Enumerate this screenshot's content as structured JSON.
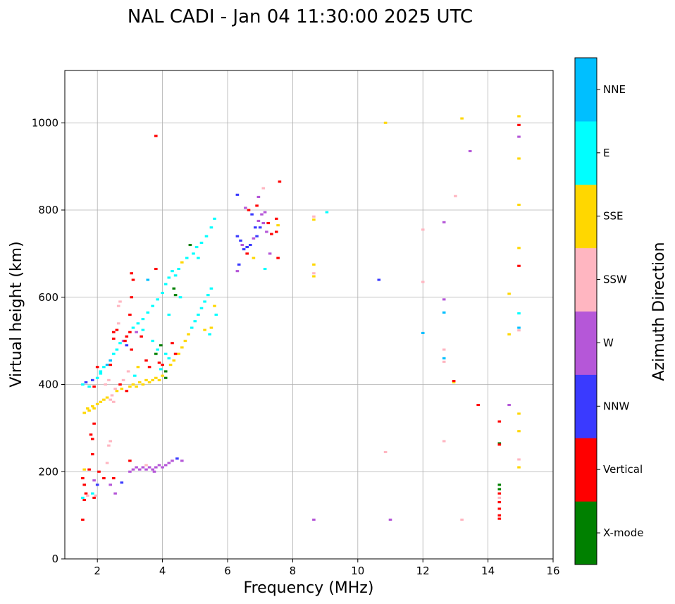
{
  "chart_data": {
    "type": "scatter",
    "title": "NAL CADI - Jan 04 11:30:00 2025 UTC",
    "xlabel": "Frequency (MHz)",
    "ylabel": "Virtual height (km)",
    "xlim": [
      1,
      16
    ],
    "ylim": [
      0,
      1120
    ],
    "xticks": [
      "2",
      "4",
      "6",
      "8",
      "10",
      "12",
      "14",
      "16"
    ],
    "yticks": [
      "0",
      "200",
      "400",
      "600",
      "800",
      "1000"
    ],
    "grid": true,
    "colorbar": {
      "label": "Azimuth Direction",
      "categories": [
        "X-mode",
        "Vertical",
        "NNW",
        "W",
        "SSW",
        "SSE",
        "E",
        "NNE"
      ],
      "colors": [
        "#008000",
        "#ff0000",
        "#3a3aff",
        "#b557d8",
        "#ffb6c1",
        "#ffd700",
        "#00ffff",
        "#00bfff"
      ]
    },
    "points": [
      [
        1.55,
        90,
        "Vertical"
      ],
      [
        1.6,
        135,
        "Vertical"
      ],
      [
        1.55,
        140,
        "E"
      ],
      [
        1.65,
        150,
        "Vertical"
      ],
      [
        1.7,
        145,
        "SSW"
      ],
      [
        1.6,
        170,
        "Vertical"
      ],
      [
        1.55,
        185,
        "Vertical"
      ],
      [
        1.6,
        205,
        "SSE"
      ],
      [
        1.75,
        205,
        "Vertical"
      ],
      [
        1.9,
        180,
        "W"
      ],
      [
        2.0,
        170,
        "NNW"
      ],
      [
        2.05,
        200,
        "Vertical"
      ],
      [
        1.95,
        145,
        "SSW"
      ],
      [
        2.2,
        185,
        "Vertical"
      ],
      [
        2.4,
        170,
        "W"
      ],
      [
        2.5,
        185,
        "Vertical"
      ],
      [
        2.55,
        150,
        "W"
      ],
      [
        2.75,
        175,
        "NNW"
      ],
      [
        1.9,
        140,
        "Vertical"
      ],
      [
        1.85,
        150,
        "E"
      ],
      [
        1.8,
        285,
        "Vertical"
      ],
      [
        1.85,
        275,
        "Vertical"
      ],
      [
        1.9,
        310,
        "Vertical"
      ],
      [
        1.85,
        240,
        "Vertical"
      ],
      [
        2.35,
        260,
        "SSW"
      ],
      [
        2.4,
        270,
        "SSW"
      ],
      [
        2.3,
        220,
        "SSW"
      ],
      [
        3.0,
        200,
        "W"
      ],
      [
        3.1,
        205,
        "W"
      ],
      [
        3.2,
        210,
        "W"
      ],
      [
        3.3,
        205,
        "W"
      ],
      [
        3.4,
        210,
        "W"
      ],
      [
        3.5,
        205,
        "W"
      ],
      [
        3.6,
        210,
        "W"
      ],
      [
        3.7,
        205,
        "W"
      ],
      [
        3.8,
        210,
        "W"
      ],
      [
        3.9,
        215,
        "W"
      ],
      [
        4.0,
        210,
        "W"
      ],
      [
        4.1,
        215,
        "W"
      ],
      [
        4.2,
        220,
        "W"
      ],
      [
        4.3,
        225,
        "W"
      ],
      [
        4.45,
        230,
        "NNW"
      ],
      [
        4.6,
        225,
        "W"
      ],
      [
        3.0,
        225,
        "Vertical"
      ],
      [
        3.5,
        215,
        "SSW"
      ],
      [
        3.75,
        200,
        "W"
      ],
      [
        1.6,
        335,
        "SSE"
      ],
      [
        1.7,
        345,
        "SSE"
      ],
      [
        1.75,
        340,
        "SSE"
      ],
      [
        1.85,
        350,
        "SSE"
      ],
      [
        1.9,
        345,
        "SSE"
      ],
      [
        2.0,
        355,
        "SSE"
      ],
      [
        2.1,
        360,
        "SSE"
      ],
      [
        2.2,
        365,
        "SSE"
      ],
      [
        2.3,
        370,
        "SSE"
      ],
      [
        2.4,
        365,
        "SSW"
      ],
      [
        2.45,
        375,
        "SSW"
      ],
      [
        2.5,
        360,
        "SSW"
      ],
      [
        2.6,
        385,
        "SSE"
      ],
      [
        2.75,
        390,
        "SSE"
      ],
      [
        2.9,
        385,
        "Vertical"
      ],
      [
        3.0,
        395,
        "SSE"
      ],
      [
        3.1,
        400,
        "SSE"
      ],
      [
        3.2,
        395,
        "SSE"
      ],
      [
        3.3,
        405,
        "SSE"
      ],
      [
        3.4,
        400,
        "SSE"
      ],
      [
        3.5,
        410,
        "SSE"
      ],
      [
        3.6,
        405,
        "SSE"
      ],
      [
        3.7,
        410,
        "SSE"
      ],
      [
        3.8,
        415,
        "SSE"
      ],
      [
        3.9,
        410,
        "SSE"
      ],
      [
        4.0,
        420,
        "SSE"
      ],
      [
        4.1,
        430,
        "X-mode"
      ],
      [
        4.1,
        415,
        "X-mode"
      ],
      [
        4.25,
        445,
        "SSE"
      ],
      [
        4.35,
        455,
        "SSE"
      ],
      [
        4.5,
        470,
        "SSE"
      ],
      [
        4.6,
        485,
        "SSE"
      ],
      [
        4.7,
        500,
        "SSE"
      ],
      [
        4.8,
        515,
        "SSE"
      ],
      [
        4.9,
        530,
        "E"
      ],
      [
        5.0,
        545,
        "E"
      ],
      [
        5.1,
        560,
        "E"
      ],
      [
        5.2,
        575,
        "E"
      ],
      [
        5.3,
        590,
        "E"
      ],
      [
        5.4,
        605,
        "E"
      ],
      [
        5.5,
        620,
        "E"
      ],
      [
        5.5,
        530,
        "SSE"
      ],
      [
        5.45,
        515,
        "E"
      ],
      [
        5.3,
        525,
        "SSE"
      ],
      [
        5.6,
        580,
        "SSE"
      ],
      [
        5.65,
        560,
        "E"
      ],
      [
        1.55,
        400,
        "E"
      ],
      [
        1.65,
        405,
        "NNW"
      ],
      [
        1.75,
        395,
        "E"
      ],
      [
        1.85,
        410,
        "NNW"
      ],
      [
        1.9,
        395,
        "Vertical"
      ],
      [
        2.0,
        415,
        "E"
      ],
      [
        2.1,
        425,
        "E"
      ],
      [
        2.2,
        440,
        "E"
      ],
      [
        2.3,
        445,
        "NNE"
      ],
      [
        2.4,
        455,
        "NNE"
      ],
      [
        2.5,
        470,
        "E"
      ],
      [
        2.6,
        480,
        "E"
      ],
      [
        2.7,
        495,
        "E"
      ],
      [
        2.8,
        500,
        "W"
      ],
      [
        2.9,
        510,
        "Vertical"
      ],
      [
        3.0,
        520,
        "Vertical"
      ],
      [
        3.1,
        530,
        "E"
      ],
      [
        3.25,
        540,
        "E"
      ],
      [
        3.4,
        550,
        "E"
      ],
      [
        3.55,
        565,
        "E"
      ],
      [
        3.7,
        580,
        "E"
      ],
      [
        3.85,
        595,
        "E"
      ],
      [
        4.0,
        610,
        "E"
      ],
      [
        4.1,
        630,
        "E"
      ],
      [
        4.2,
        645,
        "E"
      ],
      [
        4.3,
        660,
        "E"
      ],
      [
        4.4,
        650,
        "E"
      ],
      [
        4.5,
        665,
        "E"
      ],
      [
        4.6,
        680,
        "SSE"
      ],
      [
        4.75,
        690,
        "E"
      ],
      [
        4.85,
        720,
        "X-mode"
      ],
      [
        4.95,
        700,
        "E"
      ],
      [
        5.05,
        715,
        "E"
      ],
      [
        5.2,
        725,
        "E"
      ],
      [
        5.35,
        740,
        "E"
      ],
      [
        5.5,
        760,
        "E"
      ],
      [
        5.6,
        780,
        "E"
      ],
      [
        5.1,
        690,
        "E"
      ],
      [
        4.35,
        620,
        "X-mode"
      ],
      [
        4.4,
        605,
        "X-mode"
      ],
      [
        4.55,
        600,
        "E"
      ],
      [
        2.0,
        440,
        "Vertical"
      ],
      [
        2.1,
        430,
        "E"
      ],
      [
        2.4,
        445,
        "Vertical"
      ],
      [
        2.5,
        505,
        "Vertical"
      ],
      [
        2.5,
        520,
        "Vertical"
      ],
      [
        2.6,
        525,
        "Vertical"
      ],
      [
        2.65,
        540,
        "SSW"
      ],
      [
        2.65,
        580,
        "SSW"
      ],
      [
        2.7,
        590,
        "SSW"
      ],
      [
        2.85,
        500,
        "Vertical"
      ],
      [
        2.9,
        490,
        "NNW"
      ],
      [
        3.05,
        480,
        "Vertical"
      ],
      [
        3.0,
        560,
        "Vertical"
      ],
      [
        3.05,
        600,
        "Vertical"
      ],
      [
        3.05,
        655,
        "Vertical"
      ],
      [
        3.1,
        640,
        "Vertical"
      ],
      [
        3.2,
        520,
        "W"
      ],
      [
        3.35,
        510,
        "Vertical"
      ],
      [
        3.4,
        525,
        "E"
      ],
      [
        3.55,
        640,
        "NNE"
      ],
      [
        3.7,
        500,
        "E"
      ],
      [
        3.8,
        665,
        "Vertical"
      ],
      [
        3.85,
        480,
        "E"
      ],
      [
        3.95,
        490,
        "X-mode"
      ],
      [
        4.1,
        470,
        "E"
      ],
      [
        4.2,
        460,
        "E"
      ],
      [
        4.3,
        495,
        "Vertical"
      ],
      [
        4.2,
        560,
        "E"
      ],
      [
        4.4,
        470,
        "Vertical"
      ],
      [
        3.8,
        970,
        "Vertical"
      ],
      [
        3.5,
        455,
        "Vertical"
      ],
      [
        3.8,
        470,
        "X-mode"
      ],
      [
        3.9,
        450,
        "Vertical"
      ],
      [
        4.0,
        445,
        "Vertical"
      ],
      [
        3.95,
        435,
        "E"
      ],
      [
        3.6,
        440,
        "Vertical"
      ],
      [
        3.25,
        440,
        "SSE"
      ],
      [
        3.15,
        420,
        "E"
      ],
      [
        2.95,
        430,
        "SSW"
      ],
      [
        2.8,
        410,
        "SSW"
      ],
      [
        2.7,
        400,
        "Vertical"
      ],
      [
        2.55,
        390,
        "SSW"
      ],
      [
        2.35,
        410,
        "SSW"
      ],
      [
        2.25,
        400,
        "SSW"
      ],
      [
        6.3,
        740,
        "NNW"
      ],
      [
        6.4,
        730,
        "NNW"
      ],
      [
        6.5,
        710,
        "NNW"
      ],
      [
        6.6,
        715,
        "NNW"
      ],
      [
        6.7,
        720,
        "NNW"
      ],
      [
        6.8,
        735,
        "W"
      ],
      [
        6.9,
        740,
        "NNW"
      ],
      [
        7.0,
        760,
        "NNW"
      ],
      [
        7.1,
        770,
        "W"
      ],
      [
        6.85,
        760,
        "NNW"
      ],
      [
        6.95,
        775,
        "W"
      ],
      [
        6.75,
        790,
        "NNW"
      ],
      [
        6.65,
        800,
        "Vertical"
      ],
      [
        6.55,
        805,
        "W"
      ],
      [
        6.9,
        810,
        "Vertical"
      ],
      [
        7.05,
        790,
        "W"
      ],
      [
        6.95,
        830,
        "W"
      ],
      [
        7.15,
        795,
        "W"
      ],
      [
        7.25,
        770,
        "Vertical"
      ],
      [
        7.2,
        750,
        "W"
      ],
      [
        6.3,
        835,
        "NNW"
      ],
      [
        6.45,
        720,
        "W"
      ],
      [
        6.8,
        690,
        "SSE"
      ],
      [
        7.3,
        700,
        "W"
      ],
      [
        7.5,
        750,
        "Vertical"
      ],
      [
        7.55,
        690,
        "Vertical"
      ],
      [
        7.6,
        865,
        "Vertical"
      ],
      [
        7.5,
        780,
        "Vertical"
      ],
      [
        7.55,
        765,
        "SSE"
      ],
      [
        6.3,
        660,
        "W"
      ],
      [
        6.6,
        700,
        "Vertical"
      ],
      [
        6.35,
        675,
        "NNW"
      ],
      [
        7.15,
        665,
        "E"
      ],
      [
        7.35,
        745,
        "Vertical"
      ],
      [
        7.1,
        850,
        "SSW"
      ],
      [
        8.65,
        778,
        "SSE"
      ],
      [
        8.65,
        785,
        "SSW"
      ],
      [
        9.05,
        795,
        "E"
      ],
      [
        8.65,
        675,
        "SSE"
      ],
      [
        8.65,
        648,
        "SSE"
      ],
      [
        8.65,
        655,
        "SSW"
      ],
      [
        8.65,
        90,
        "W"
      ],
      [
        10.65,
        640,
        "NNW"
      ],
      [
        11.0,
        90,
        "W"
      ],
      [
        10.85,
        245,
        "SSW"
      ],
      [
        10.85,
        1000,
        "SSE"
      ],
      [
        12.0,
        755,
        "SSW"
      ],
      [
        12.0,
        635,
        "SSW"
      ],
      [
        12.0,
        518,
        "NNE"
      ],
      [
        12.65,
        772,
        "W"
      ],
      [
        12.65,
        595,
        "W"
      ],
      [
        12.65,
        565,
        "NNE"
      ],
      [
        12.65,
        480,
        "SSW"
      ],
      [
        12.65,
        460,
        "NNE"
      ],
      [
        12.65,
        452,
        "SSW"
      ],
      [
        12.65,
        270,
        "SSW"
      ],
      [
        12.95,
        405,
        "SSE"
      ],
      [
        12.95,
        408,
        "Vertical"
      ],
      [
        13.0,
        832,
        "SSW"
      ],
      [
        13.2,
        1010,
        "SSE"
      ],
      [
        13.2,
        90,
        "SSW"
      ],
      [
        13.45,
        935,
        "W"
      ],
      [
        13.7,
        353,
        "Vertical"
      ],
      [
        14.35,
        315,
        "Vertical"
      ],
      [
        14.35,
        265,
        "X-mode"
      ],
      [
        14.35,
        262,
        "Vertical"
      ],
      [
        14.35,
        170,
        "X-mode"
      ],
      [
        14.35,
        160,
        "X-mode"
      ],
      [
        14.35,
        150,
        "Vertical"
      ],
      [
        14.35,
        140,
        "SSW"
      ],
      [
        14.35,
        130,
        "Vertical"
      ],
      [
        14.35,
        115,
        "Vertical"
      ],
      [
        14.35,
        100,
        "Vertical"
      ],
      [
        14.35,
        92,
        "Vertical"
      ],
      [
        14.65,
        353,
        "W"
      ],
      [
        14.65,
        608,
        "SSE"
      ],
      [
        14.65,
        515,
        "SSE"
      ],
      [
        14.95,
        1015,
        "SSE"
      ],
      [
        14.95,
        995,
        "Vertical"
      ],
      [
        14.95,
        968,
        "W"
      ],
      [
        14.95,
        918,
        "SSE"
      ],
      [
        14.95,
        812,
        "SSE"
      ],
      [
        14.95,
        713,
        "SSE"
      ],
      [
        14.95,
        672,
        "Vertical"
      ],
      [
        14.95,
        563,
        "E"
      ],
      [
        14.95,
        530,
        "NNE"
      ],
      [
        14.95,
        524,
        "SSW"
      ],
      [
        14.95,
        333,
        "SSE"
      ],
      [
        14.95,
        293,
        "SSE"
      ],
      [
        14.95,
        228,
        "SSW"
      ],
      [
        14.95,
        210,
        "SSE"
      ]
    ]
  }
}
